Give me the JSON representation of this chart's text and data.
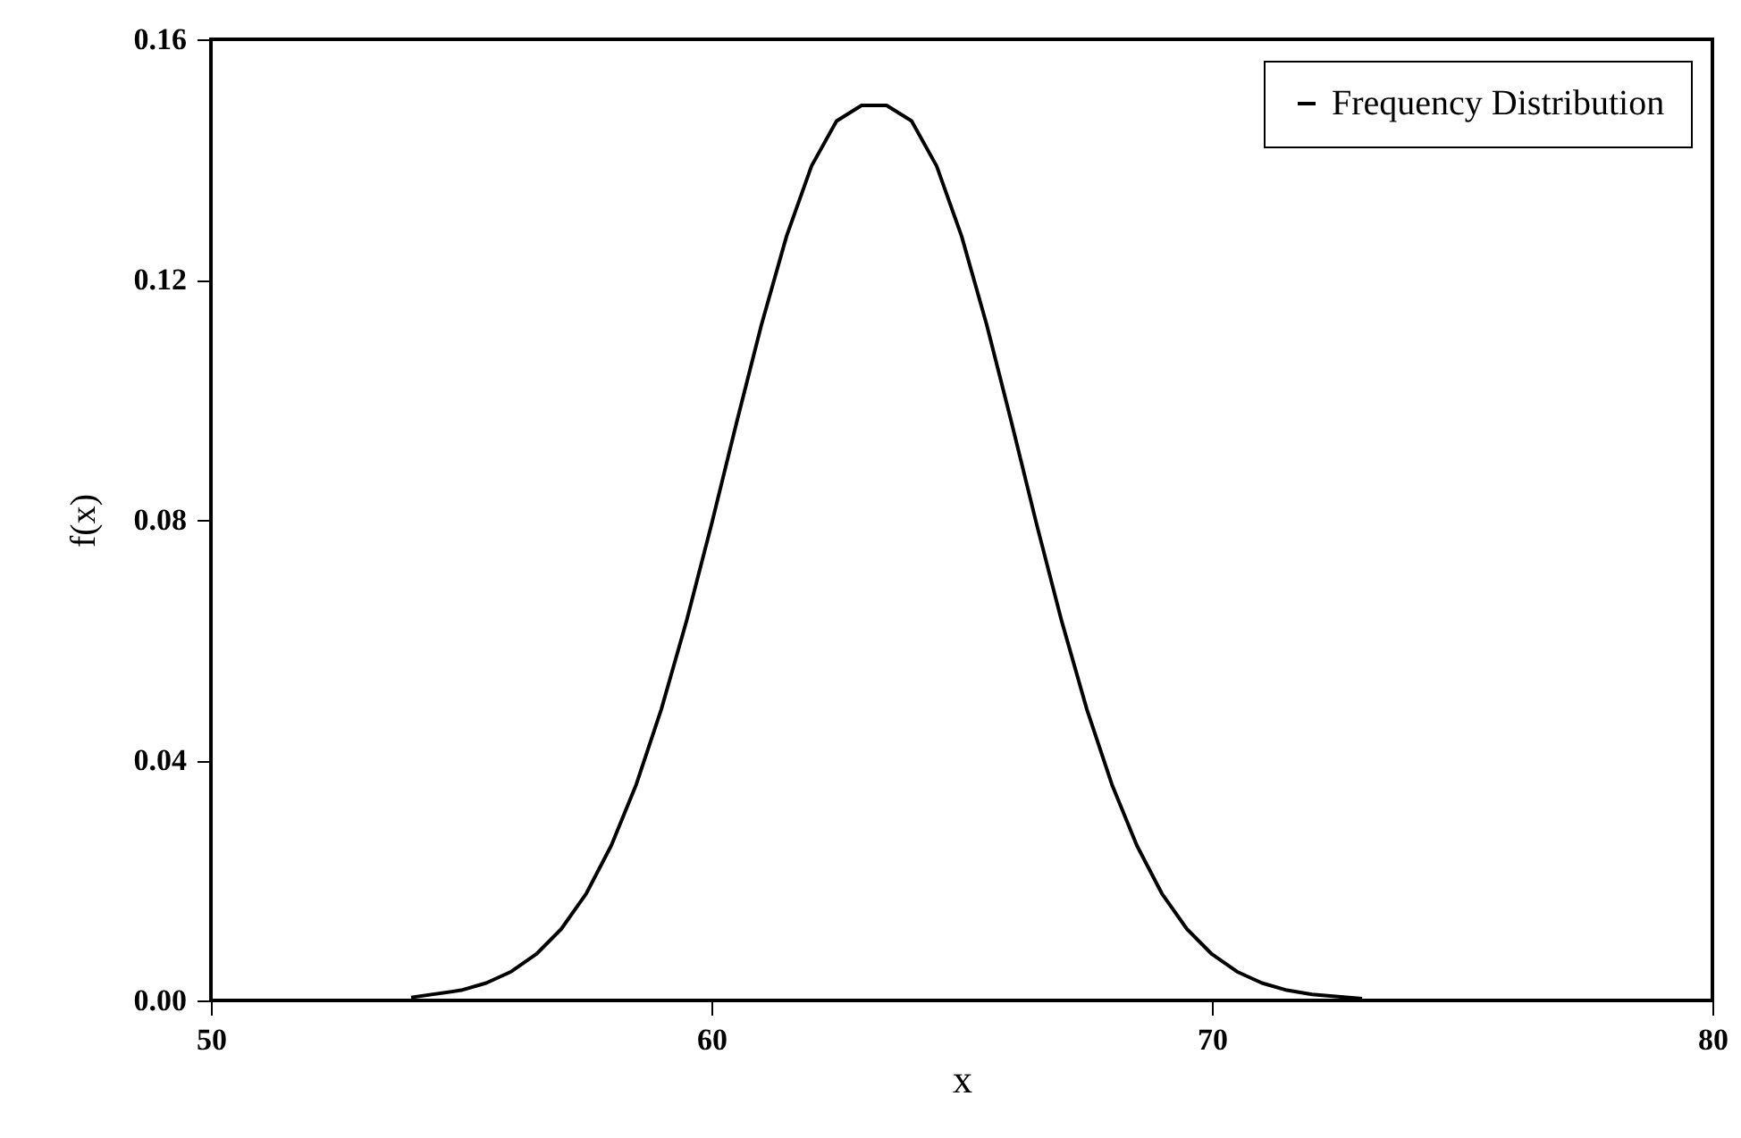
{
  "chart_data": {
    "type": "line",
    "xlabel": "x",
    "ylabel": "f(x)",
    "xlim": [
      50,
      80
    ],
    "ylim": [
      0,
      0.16
    ],
    "xticks": [
      50,
      60,
      70,
      80
    ],
    "yticks": [
      {
        "value": 0,
        "label": "0.00"
      },
      0.04,
      0.08,
      0.12,
      0.16
    ],
    "grid": false,
    "legend": "top right",
    "marker": "none",
    "line_style": "solid",
    "x": [
      54,
      55,
      55.5,
      56,
      56.5,
      57,
      57.5,
      58,
      58.5,
      59,
      59.5,
      60,
      60.5,
      61,
      61.5,
      62,
      62.5,
      63,
      63.5,
      64,
      64.5,
      65,
      65.5,
      66,
      66.5,
      67,
      67.5,
      68,
      68.5,
      69,
      69.5,
      70,
      70.5,
      71,
      71.5,
      72,
      73
    ],
    "series": [
      {
        "name": "Frequency Distribution",
        "color": "#000000",
        "values": [
          0.0005,
          0.0017,
          0.0029,
          0.0048,
          0.0077,
          0.0119,
          0.0178,
          0.0258,
          0.036,
          0.0485,
          0.0631,
          0.0792,
          0.0961,
          0.1125,
          0.1272,
          0.1389,
          0.1464,
          0.149,
          0.149,
          0.1464,
          0.1389,
          0.1272,
          0.1125,
          0.0961,
          0.0792,
          0.0631,
          0.0485,
          0.036,
          0.0258,
          0.0178,
          0.0119,
          0.0077,
          0.0048,
          0.0029,
          0.0017,
          0.001,
          0.0003
        ]
      }
    ]
  }
}
